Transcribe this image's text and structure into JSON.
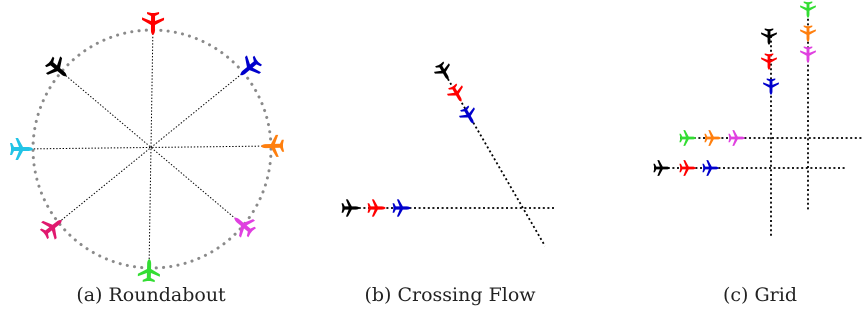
{
  "panels": {
    "roundabout": {
      "caption": "(a) Roundabout",
      "aircraft": [
        {
          "name": "north",
          "color": "#ff0000"
        },
        {
          "name": "north-east",
          "color": "#0000cc"
        },
        {
          "name": "east",
          "color": "#ff7f0e"
        },
        {
          "name": "south-east",
          "color": "#e040e0"
        },
        {
          "name": "south",
          "color": "#33dd33"
        },
        {
          "name": "south-west",
          "color": "#e0186e"
        },
        {
          "name": "west",
          "color": "#22c4e6"
        },
        {
          "name": "north-west",
          "color": "#000000"
        }
      ]
    },
    "crossing_flow": {
      "caption": "(b) Crossing Flow",
      "diagonal_flow_colors": [
        "#000000",
        "#ff0000",
        "#0000cc"
      ],
      "horizontal_flow_colors": [
        "#000000",
        "#ff0000",
        "#0000cc"
      ]
    },
    "grid": {
      "caption": "(c) Grid",
      "upper_horizontal_flow_colors": [
        "#33dd33",
        "#ff7f0e",
        "#e040e0"
      ],
      "lower_horizontal_flow_colors": [
        "#000000",
        "#ff0000",
        "#0000cc"
      ],
      "left_vertical_flow_colors": [
        "#000000",
        "#ff0000",
        "#0000cc"
      ],
      "right_vertical_flow_colors": [
        "#33dd33",
        "#ff7f0e",
        "#e040e0"
      ]
    }
  }
}
